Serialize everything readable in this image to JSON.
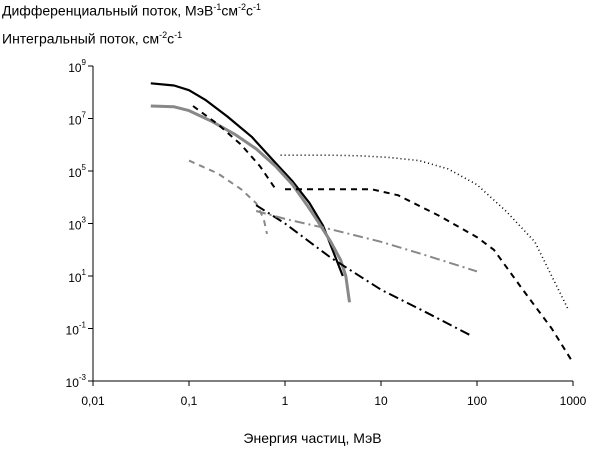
{
  "chart_data": {
    "type": "line",
    "ylabel_lines": [
      [
        [
          "Дифференциальный поток, МэВ",
          ""
        ],
        [
          "-1",
          "sup"
        ],
        [
          "см",
          ""
        ],
        [
          "-2",
          "sup"
        ],
        [
          "с",
          ""
        ],
        [
          "-1",
          "sup"
        ]
      ],
      [
        [
          "Интегральный поток, см",
          ""
        ],
        [
          "-2",
          "sup"
        ],
        [
          "с",
          ""
        ],
        [
          "-1",
          "sup"
        ]
      ]
    ],
    "xlabel": "Энергия частиц, МэВ",
    "xscale": "log",
    "yscale": "log",
    "xlim": [
      0.01,
      1000
    ],
    "ylim": [
      0.001,
      1000000000
    ],
    "x_ticks": [
      {
        "value": 0.01,
        "label": "0,01"
      },
      {
        "value": 0.1,
        "label": "0,1"
      },
      {
        "value": 1,
        "label": "1"
      },
      {
        "value": 10,
        "label": "10"
      },
      {
        "value": 100,
        "label": "100"
      },
      {
        "value": 1000,
        "label": "1000"
      }
    ],
    "y_ticks": [
      {
        "value": 0.001,
        "base": "10",
        "exp": "-3"
      },
      {
        "value": 0.1,
        "base": "10",
        "exp": "-1"
      },
      {
        "value": 10,
        "base": "10",
        "exp": "1"
      },
      {
        "value": 1000,
        "base": "10",
        "exp": "3"
      },
      {
        "value": 100000,
        "base": "10",
        "exp": "5"
      },
      {
        "value": 10000000,
        "base": "10",
        "exp": "7"
      },
      {
        "value": 1000000000,
        "base": "10",
        "exp": "9"
      }
    ],
    "grid": false,
    "legend": "none",
    "series": [
      {
        "color": "#000000",
        "width": 2.2,
        "dash": "",
        "x": [
          0.04,
          0.07,
          0.1,
          0.15,
          0.25,
          0.45,
          0.8,
          1.2,
          1.8,
          2.5,
          3.3,
          4.0
        ],
        "y": [
          220000000,
          180000000,
          120000000,
          50000000,
          12000000,
          2000000,
          200000,
          40000,
          6000,
          800,
          60,
          10
        ]
      },
      {
        "color": "#888888",
        "width": 3,
        "dash": "",
        "x": [
          0.04,
          0.07,
          0.1,
          0.17,
          0.3,
          0.5,
          0.8,
          1.2,
          1.7,
          2.2,
          3.0,
          3.8,
          4.3,
          4.7
        ],
        "y": [
          30000000,
          28000000,
          20000000,
          8000000,
          2500000,
          700000,
          150000,
          30000,
          5000,
          1200,
          200,
          40,
          10,
          1
        ]
      },
      {
        "color": "#000000",
        "width": 2,
        "dash": "6,5",
        "x": [
          0.11,
          0.2,
          0.35,
          0.55,
          0.8
        ],
        "y": [
          30000000,
          6000000,
          1000000,
          150000,
          20000
        ]
      },
      {
        "color": "#888888",
        "width": 2,
        "dash": "6,5",
        "x": [
          0.1,
          0.2,
          0.35,
          0.5,
          0.6,
          0.65
        ],
        "y": [
          250000,
          80000,
          20000,
          6000,
          1500,
          400
        ]
      },
      {
        "color": "#000000",
        "width": 1.6,
        "dash": "1,3",
        "x": [
          0.9,
          1.5,
          3,
          6,
          12,
          25,
          50,
          100,
          200,
          400,
          900
        ],
        "y": [
          400000,
          400000,
          400000,
          380000,
          330000,
          250000,
          120000,
          30000,
          3000,
          200,
          0.5
        ]
      },
      {
        "color": "#000000",
        "width": 2,
        "dash": "6,5",
        "x": [
          1.0,
          3,
          8,
          15,
          40,
          100,
          150,
          300,
          600,
          1000
        ],
        "y": [
          20000,
          20000,
          20000,
          12000,
          2000,
          300,
          100,
          3,
          0.1,
          0.005
        ]
      },
      {
        "color": "#000000",
        "width": 2,
        "dash": "10,4,2,4",
        "x": [
          0.5,
          1,
          3,
          10,
          30,
          90
        ],
        "y": [
          5000,
          1000,
          50,
          3,
          0.4,
          0.05
        ]
      },
      {
        "color": "#888888",
        "width": 2,
        "dash": "10,4,2,4",
        "x": [
          0.5,
          1,
          3,
          10,
          30,
          100
        ],
        "y": [
          3000,
          1500,
          600,
          200,
          60,
          15
        ]
      }
    ]
  }
}
